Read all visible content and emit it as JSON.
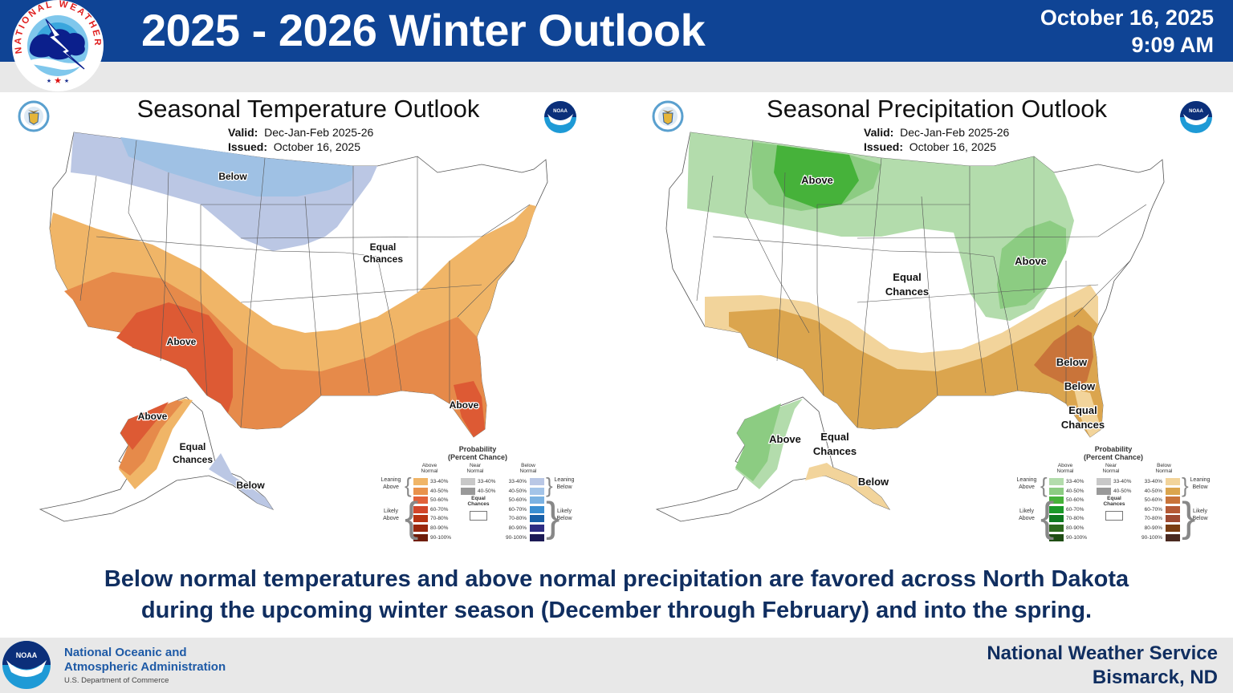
{
  "header": {
    "title": "2025 - 2026 Winter Outlook",
    "date": "October 16, 2025",
    "time": "9:09 AM",
    "logo_text": "NATIONAL WEATHER SERVICE",
    "header_color": "#0f4495"
  },
  "temperature_outlook": {
    "title": "Seasonal Temperature Outlook",
    "valid_label": "Valid:",
    "valid_value": "Dec-Jan-Feb 2025-26",
    "issued_label": "Issued:",
    "issued_value": "October 16, 2025",
    "map_labels": {
      "below_north": "Below",
      "equal_chances_1": "Equal",
      "equal_chances_2": "Chances",
      "above_southwest": "Above",
      "above_florida": "Above",
      "above_alaska": "Above",
      "ak_equal_1": "Equal",
      "ak_equal_2": "Chances",
      "below_alaska": "Below"
    },
    "legend": {
      "title_1": "Probability",
      "title_2": "(Percent Chance)",
      "above_header_1": "Above",
      "above_header_2": "Normal",
      "near_header_1": "Near",
      "near_header_2": "Normal",
      "below_header_1": "Below",
      "below_header_2": "Normal",
      "leaning_above_1": "Leaning",
      "leaning_above_2": "Above",
      "likely_above_1": "Likely",
      "likely_above_2": "Above",
      "leaning_below_1": "Leaning",
      "leaning_below_2": "Below",
      "likely_below_1": "Likely",
      "likely_below_2": "Below",
      "equal_1": "Equal",
      "equal_2": "Chances",
      "ranges": [
        "33-40%",
        "40-50%",
        "50-60%",
        "60-70%",
        "70-80%",
        "80-90%",
        "90-100%"
      ],
      "near_ranges": [
        "33-40%",
        "40-50%"
      ],
      "above_colors": [
        "#f0b567",
        "#e9924c",
        "#e2613a",
        "#d2462a",
        "#b73413",
        "#9a280e",
        "#6f1d0a"
      ],
      "near_colors": [
        "#c8c8c8",
        "#999999"
      ],
      "below_colors": [
        "#b9c7e5",
        "#a3c4e8",
        "#7bb2e2",
        "#3b8fd2",
        "#1960a8",
        "#2e2d83",
        "#1c1a55"
      ]
    }
  },
  "precipitation_outlook": {
    "title": "Seasonal Precipitation Outlook",
    "valid_label": "Valid:",
    "valid_value": "Dec-Jan-Feb 2025-26",
    "issued_label": "Issued:",
    "issued_value": "October 16, 2025",
    "map_labels": {
      "above_north": "Above",
      "above_ohio_valley": "Above",
      "equal_chances_1": "Equal",
      "equal_chances_2": "Chances",
      "below_southeast": "Below",
      "below_florida": "Below",
      "fl_equal_1": "Equal",
      "fl_equal_2": "Chances",
      "above_alaska": "Above",
      "ak_equal_1": "Equal",
      "ak_equal_2": "Chances",
      "below_alaska": "Below"
    },
    "legend": {
      "title_1": "Probability",
      "title_2": "(Percent Chance)",
      "above_header_1": "Above",
      "above_header_2": "Normal",
      "near_header_1": "Near",
      "near_header_2": "Normal",
      "below_header_1": "Below",
      "below_header_2": "Normal",
      "leaning_above_1": "Leaning",
      "leaning_above_2": "Above",
      "likely_above_1": "Likely",
      "likely_above_2": "Above",
      "leaning_below_1": "Leaning",
      "leaning_below_2": "Below",
      "likely_below_1": "Likely",
      "likely_below_2": "Below",
      "equal_1": "Equal",
      "equal_2": "Chances",
      "ranges": [
        "33-40%",
        "40-50%",
        "50-60%",
        "60-70%",
        "70-80%",
        "80-90%",
        "90-100%"
      ],
      "near_ranges": [
        "33-40%",
        "40-50%"
      ],
      "above_colors": [
        "#b3dcac",
        "#8ccc82",
        "#46b23a",
        "#1a9a2a",
        "#0f7a20",
        "#2d6a1e",
        "#1f4d14"
      ],
      "near_colors": [
        "#c8c8c8",
        "#999999"
      ],
      "below_colors": [
        "#f2d49b",
        "#dba54e",
        "#c9743a",
        "#b55a36",
        "#9e4a32",
        "#7a3d12",
        "#4a2a20"
      ]
    }
  },
  "summary": {
    "line1": "Below normal temperatures and above normal precipitation are favored across North Dakota",
    "line2": "during the upcoming winter season (December through February) and into the spring."
  },
  "footer": {
    "noaa_line1": "National Oceanic and",
    "noaa_line2": "Atmospheric Administration",
    "noaa_dept": "U.S. Department of Commerce",
    "noaa_logo_text": "NOAA",
    "office_line1": "National Weather Service",
    "office_line2": "Bismarck, ND"
  }
}
